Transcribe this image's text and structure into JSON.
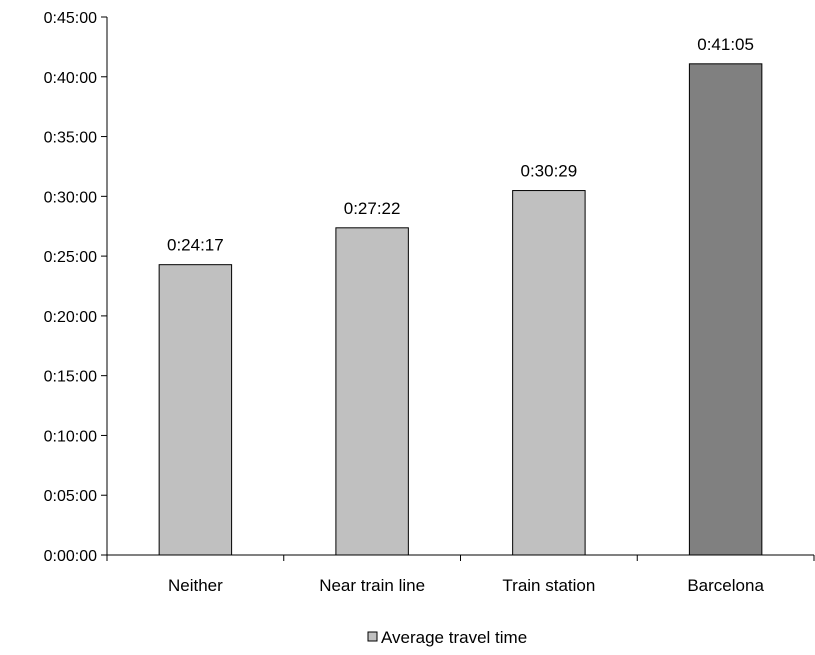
{
  "chart_data": {
    "type": "bar",
    "categories": [
      "Neither",
      "Near train line",
      "Train station",
      "Barcelona"
    ],
    "series": [
      {
        "name": "Average travel time",
        "values": [
          1457,
          1642,
          1829,
          2465
        ],
        "value_labels": [
          "0:24:17",
          "0:27:22",
          "0:30:29",
          "0:41:05"
        ],
        "colors": [
          "#c0c0c0",
          "#c0c0c0",
          "#c0c0c0",
          "#808080"
        ]
      }
    ],
    "y_unit": "seconds",
    "ylim": [
      0,
      2700
    ],
    "y_ticks": [
      0,
      300,
      600,
      900,
      1200,
      1500,
      1800,
      2100,
      2400,
      2700
    ],
    "y_tick_labels": [
      "0:00:00",
      "0:05:00",
      "0:10:00",
      "0:15:00",
      "0:20:00",
      "0:25:00",
      "0:30:00",
      "0:35:00",
      "0:40:00",
      "0:45:00"
    ],
    "grid": false,
    "legend_position": "bottom",
    "legend_color": "#c0c0c0"
  }
}
